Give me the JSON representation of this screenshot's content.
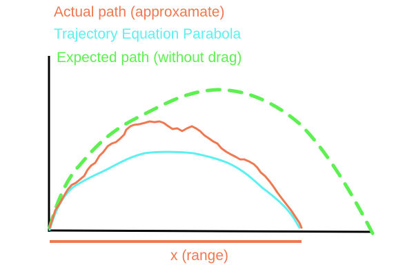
{
  "legend": {
    "actual": "Actual path (approxamate)",
    "trajectory": "Trajectory Equation Parabola",
    "expected": "Expected path (without drag)"
  },
  "axis": {
    "x_label": "x (range)"
  },
  "colors": {
    "actual": "#f07850",
    "trajectory": "#5cf0f0",
    "expected": "#5cf050",
    "axis": "#000000"
  }
}
